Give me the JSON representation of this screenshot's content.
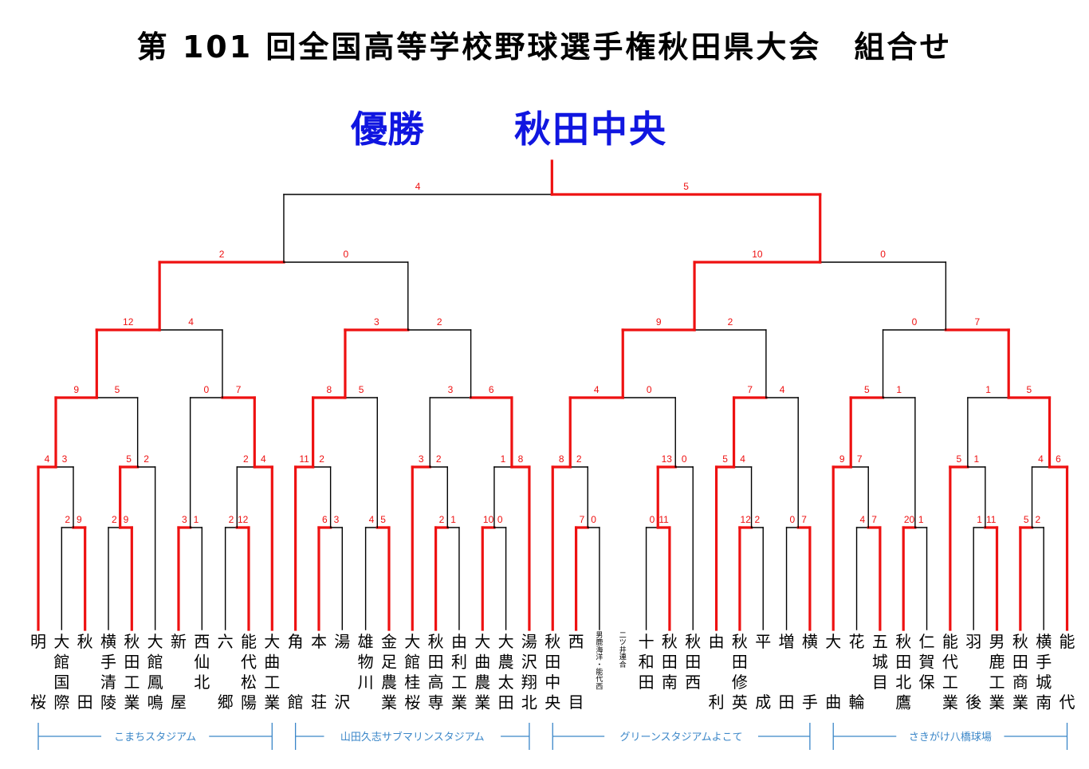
{
  "title": "第 101 回全国高等学校野球選手権秋田県大会　組合せ",
  "champion": {
    "label": "優勝",
    "team": "秋田中央"
  },
  "colors": {
    "winner": "#ee1111",
    "loser": "#000000",
    "score": "#ee1111",
    "venue": "#3a86c8",
    "champion": "#1016e0"
  },
  "teams": [
    {
      "top": "明",
      "bottom": "桜"
    },
    {
      "top": "大館国際",
      "bottom": ""
    },
    {
      "top": "秋",
      "bottom": "田"
    },
    {
      "top": "横手清陵",
      "bottom": ""
    },
    {
      "top": "秋田工業",
      "bottom": ""
    },
    {
      "top": "大館鳳鳴",
      "bottom": ""
    },
    {
      "top": "新",
      "bottom": "屋"
    },
    {
      "top": "西仙北",
      "bottom": ""
    },
    {
      "top": "六",
      "bottom": "郷"
    },
    {
      "top": "能代松陽",
      "bottom": ""
    },
    {
      "top": "大曲工業",
      "bottom": ""
    },
    {
      "top": "角",
      "bottom": "館"
    },
    {
      "top": "本",
      "bottom": "荘"
    },
    {
      "top": "湯",
      "bottom": "沢"
    },
    {
      "top": "雄物川",
      "bottom": ""
    },
    {
      "top": "金足農業",
      "bottom": ""
    },
    {
      "top": "大館桂桜",
      "bottom": ""
    },
    {
      "top": "秋田高専",
      "bottom": ""
    },
    {
      "top": "由利工業",
      "bottom": ""
    },
    {
      "top": "大曲農業",
      "bottom": ""
    },
    {
      "top": "大農太田",
      "bottom": ""
    },
    {
      "top": "湯沢翔北",
      "bottom": ""
    },
    {
      "top": "秋田中央",
      "bottom": ""
    },
    {
      "top": "西",
      "bottom": "目"
    },
    {
      "top": "男鹿海洋・能代西",
      "bottom": "",
      "small": true
    },
    {
      "top": "二ツ井連合",
      "bottom": "",
      "small": true
    },
    {
      "top": "十和田",
      "bottom": ""
    },
    {
      "top": "秋田南",
      "bottom": ""
    },
    {
      "top": "秋田西",
      "bottom": ""
    },
    {
      "top": "由",
      "bottom": "利"
    },
    {
      "top": "秋田修英",
      "bottom": ""
    },
    {
      "top": "平",
      "bottom": "成"
    },
    {
      "top": "増",
      "bottom": "田"
    },
    {
      "top": "横",
      "bottom": "手"
    },
    {
      "top": "大",
      "bottom": "曲"
    },
    {
      "top": "花",
      "bottom": "輪"
    },
    {
      "top": "五城目",
      "bottom": ""
    },
    {
      "top": "秋田北鷹",
      "bottom": ""
    },
    {
      "top": "仁賀保",
      "bottom": ""
    },
    {
      "top": "能代工業",
      "bottom": ""
    },
    {
      "top": "羽",
      "bottom": "後"
    },
    {
      "top": "男鹿工業",
      "bottom": ""
    },
    {
      "top": "秋田商業",
      "bottom": ""
    },
    {
      "top": "横手城南",
      "bottom": ""
    },
    {
      "top": "能",
      "bottom": "代"
    }
  ],
  "venues": [
    "こまちスタジアム",
    "山田久志サブマリンスタジアム",
    "グリーンスタジアムよこて",
    "さきがけ八橋球場"
  ],
  "matches": [
    {
      "a": 1,
      "b": 2,
      "sa": "2",
      "sb": "9",
      "w": "b"
    },
    {
      "a": 3,
      "b": 4,
      "sa": "2",
      "sb": "9",
      "w": "b"
    },
    {
      "a": 8,
      "b": 9,
      "sa": "2",
      "sb": "12",
      "w": "b"
    },
    {
      "a": 12,
      "b": 13,
      "sa": "6",
      "sb": "3",
      "w": "a"
    },
    {
      "a": 17,
      "b": 18,
      "sa": "2",
      "sb": "1",
      "w": "a"
    },
    {
      "a": 19,
      "b": 20,
      "sa": "10",
      "sb": "0",
      "w": "a"
    },
    {
      "a": 23,
      "b": 24,
      "sa": "7",
      "sb": "0",
      "w": "a"
    },
    {
      "a": 26,
      "b": 27,
      "sa": "0",
      "sb": "11",
      "w": "b"
    },
    {
      "a": 30,
      "b": 31,
      "sa": "12",
      "sb": "2",
      "w": "a"
    },
    {
      "a": 35,
      "b": 36,
      "sa": "4",
      "sb": "7",
      "w": "b"
    },
    {
      "a": 40,
      "b": 41,
      "sa": "1",
      "sb": "11",
      "w": "b"
    },
    {
      "a": 42,
      "b": 43,
      "sa": "5",
      "sb": "2",
      "w": "a"
    },
    {
      "a": 0,
      "b": "m0",
      "sa": "4",
      "sb": "3",
      "w": "a"
    },
    {
      "a": "m1",
      "b": 5,
      "sa": "5",
      "sb": "2",
      "w": "a"
    },
    {
      "a": 6,
      "b": 7,
      "sa": "3",
      "sb": "1",
      "w": "a"
    },
    {
      "a": "m2",
      "b": 10,
      "sa": "2",
      "sb": "4",
      "w": "b"
    },
    {
      "a": 11,
      "b": "m3",
      "sa": "11",
      "sb": "2",
      "w": "a"
    },
    {
      "a": 14,
      "b": 15,
      "sa": "4",
      "sb": "5",
      "w": "b"
    },
    {
      "a": 16,
      "b": "m4",
      "sa": "3",
      "sb": "2",
      "w": "a"
    },
    {
      "a": "m5",
      "b": 21,
      "sa": "1",
      "sb": "8",
      "w": "b"
    },
    {
      "a": 22,
      "b": "m6",
      "sa": "8",
      "sb": "2",
      "w": "a"
    },
    {
      "a": "m7",
      "b": 28,
      "sa": "13",
      "sb": "0",
      "w": "a"
    },
    {
      "a": 29,
      "b": "m8",
      "sa": "5",
      "sb": "4",
      "w": "a"
    },
    {
      "a": 32,
      "b": 33,
      "sa": "0",
      "sb": "7",
      "w": "b"
    },
    {
      "a": 34,
      "b": "m9",
      "sa": "9",
      "sb": "7",
      "w": "a"
    },
    {
      "a": 37,
      "b": 38,
      "sa": "20",
      "sb": "1",
      "w": "a"
    },
    {
      "a": 39,
      "b": "m10",
      "sa": "5",
      "sb": "1",
      "w": "a"
    },
    {
      "a": "m11",
      "b": 44,
      "sa": "4",
      "sb": "6",
      "w": "b"
    },
    {
      "a": "m12",
      "b": "m13",
      "sa": "9",
      "sb": "5",
      "w": "a"
    },
    {
      "a": "m14",
      "b": "m15",
      "sa": "0",
      "sb": "7",
      "w": "b"
    },
    {
      "a": "m16",
      "b": "m17",
      "sa": "8",
      "sb": "5",
      "w": "a"
    },
    {
      "a": "m18",
      "b": "m19",
      "sa": "3",
      "sb": "6",
      "w": "b"
    },
    {
      "a": "m20",
      "b": "m21",
      "sa": "4",
      "sb": "0",
      "w": "a"
    },
    {
      "a": "m22",
      "b": "m23",
      "sa": "7",
      "sb": "4",
      "w": "a"
    },
    {
      "a": "m24",
      "b": "m25",
      "sa": "5",
      "sb": "1",
      "w": "a"
    },
    {
      "a": "m26",
      "b": "m27",
      "sa": "1",
      "sb": "5",
      "w": "b"
    },
    {
      "a": "m28",
      "b": "m29",
      "sa": "12",
      "sb": "4",
      "w": "a"
    },
    {
      "a": "m30",
      "b": "m31",
      "sa": "3",
      "sb": "2",
      "w": "a"
    },
    {
      "a": "m32",
      "b": "m33",
      "sa": "9",
      "sb": "2",
      "w": "a"
    },
    {
      "a": "m34",
      "b": "m35",
      "sa": "0",
      "sb": "7",
      "w": "b"
    },
    {
      "a": "m36",
      "b": "m37",
      "sa": "2",
      "sb": "0",
      "w": "a"
    },
    {
      "a": "m38",
      "b": "m39",
      "sa": "10",
      "sb": "0",
      "w": "a"
    },
    {
      "a": "m40",
      "b": "m41",
      "sa": "4",
      "sb": "5",
      "w": "b"
    }
  ]
}
